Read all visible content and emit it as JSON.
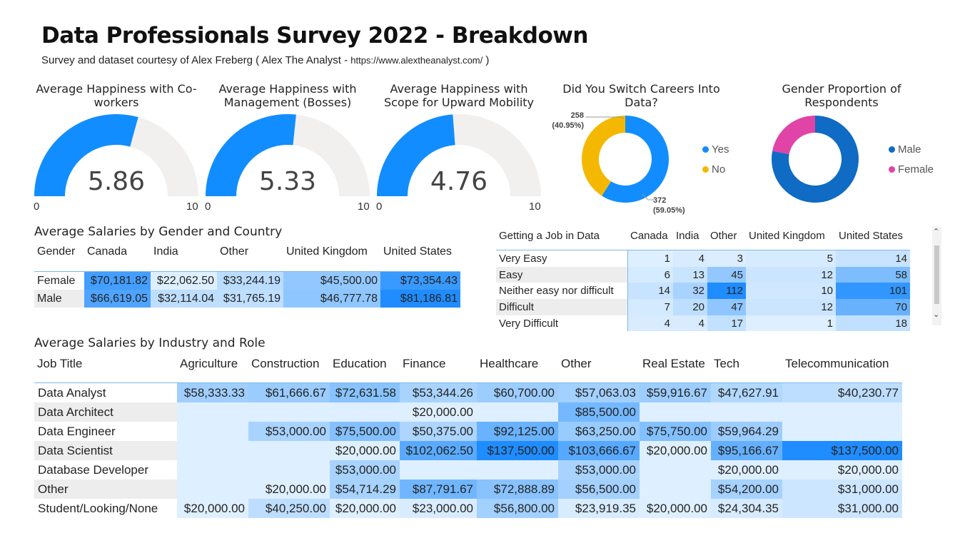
{
  "header": {
    "title": "Data Professionals Survey 2022 - Breakdown",
    "subtitle": "Survey and dataset courtesy of Alex Freberg ( Alex The Analyst - ",
    "subtitle_url": "https://www.alextheanalyst.com/",
    "subtitle_end": " )"
  },
  "colors": {
    "gauge_fill": "#118DFF",
    "gauge_track": "#F1F0EF",
    "yes": "#118DFF",
    "no": "#F5B800",
    "male": "#0F6BC4",
    "female": "#E044A7"
  },
  "gauges": [
    {
      "title": "Average Happiness with Co-workers",
      "value": "5.86",
      "min": "0",
      "max": "10"
    },
    {
      "title": "Average Happiness with Management (Bosses)",
      "value": "5.33",
      "min": "0",
      "max": "10"
    },
    {
      "title": "Average Happiness with Scope for Upward Mobility",
      "value": "4.76",
      "min": "0",
      "max": "10"
    }
  ],
  "chart_data": [
    {
      "type": "gauge",
      "title": "Average Happiness with Co-workers",
      "value": 5.86,
      "min": 0,
      "max": 10
    },
    {
      "type": "gauge",
      "title": "Average Happiness with Management (Bosses)",
      "value": 5.33,
      "min": 0,
      "max": 10
    },
    {
      "type": "gauge",
      "title": "Average Happiness with Scope for Upward Mobility",
      "value": 4.76,
      "min": 0,
      "max": 10
    },
    {
      "type": "pie",
      "title": "Did You Switch Careers Into Data?",
      "categories": [
        "Yes",
        "No"
      ],
      "values": [
        372,
        258
      ],
      "labels": [
        "372\n(59.05%)",
        "258\n(40.95%)"
      ],
      "legend": "right"
    },
    {
      "type": "pie",
      "title": "Gender Proportion of Respondents",
      "categories": [
        "Male",
        "Female"
      ],
      "values": [
        0.78,
        0.22
      ],
      "legend": "right"
    },
    {
      "type": "table",
      "title": "Average Salaries by Gender and Country",
      "columns": [
        "Gender",
        "Canada",
        "India",
        "Other",
        "United Kingdom",
        "United States"
      ],
      "rows": [
        [
          "Female",
          "$70,181.82",
          "$22,062.50",
          "$33,244.19",
          "$45,500.00",
          "$73,354.43"
        ],
        [
          "Male",
          "$66,619.05",
          "$32,114.04",
          "$31,765.19",
          "$46,777.78",
          "$81,186.81"
        ]
      ]
    },
    {
      "type": "table",
      "title": "Getting a Job in Data",
      "columns": [
        "Getting a Job in Data",
        "Canada",
        "India",
        "Other",
        "United Kingdom",
        "United States"
      ],
      "rows": [
        [
          "Very Easy",
          "1",
          "4",
          "3",
          "5",
          "14"
        ],
        [
          "Easy",
          "6",
          "13",
          "45",
          "12",
          "58"
        ],
        [
          "Neither easy nor difficult",
          "14",
          "32",
          "112",
          "10",
          "101"
        ],
        [
          "Difficult",
          "7",
          "20",
          "47",
          "12",
          "70"
        ],
        [
          "Very Difficult",
          "4",
          "4",
          "17",
          "1",
          "18"
        ]
      ]
    },
    {
      "type": "table",
      "title": "Average Salaries by Industry and Role",
      "columns": [
        "Job Title",
        "Agriculture",
        "Construction",
        "Education",
        "Finance",
        "Healthcare",
        "Other",
        "Real Estate",
        "Tech",
        "Telecommunication"
      ],
      "rows": [
        [
          "Data Analyst",
          "$58,333.33",
          "$61,666.67",
          "$72,631.58",
          "$53,344.26",
          "$60,700.00",
          "$57,063.03",
          "$59,916.67",
          "$47,627.91",
          "$40,230.77"
        ],
        [
          "Data Architect",
          "",
          "",
          "",
          "$20,000.00",
          "",
          "$85,500.00",
          "",
          "",
          ""
        ],
        [
          "Data Engineer",
          "",
          "$53,000.00",
          "$75,500.00",
          "$50,375.00",
          "$92,125.00",
          "$63,250.00",
          "$75,750.00",
          "$59,964.29",
          ""
        ],
        [
          "Data Scientist",
          "",
          "",
          "$20,000.00",
          "$102,062.50",
          "$137,500.00",
          "$103,666.67",
          "$20,000.00",
          "$95,166.67",
          "$137,500.00"
        ],
        [
          "Database Developer",
          "",
          "",
          "$53,000.00",
          "",
          "",
          "$53,000.00",
          "",
          "$20,000.00",
          "$20,000.00"
        ],
        [
          "Other",
          "",
          "$20,000.00",
          "$54,714.29",
          "$87,791.67",
          "$72,888.89",
          "$56,500.00",
          "",
          "$54,200.00",
          "$31,000.00"
        ],
        [
          "Student/Looking/None",
          "$20,000.00",
          "$40,250.00",
          "$20,000.00",
          "$23,000.00",
          "$56,800.00",
          "$23,919.35",
          "$20,000.00",
          "$24,304.35",
          "$31,000.00"
        ]
      ]
    }
  ]
}
